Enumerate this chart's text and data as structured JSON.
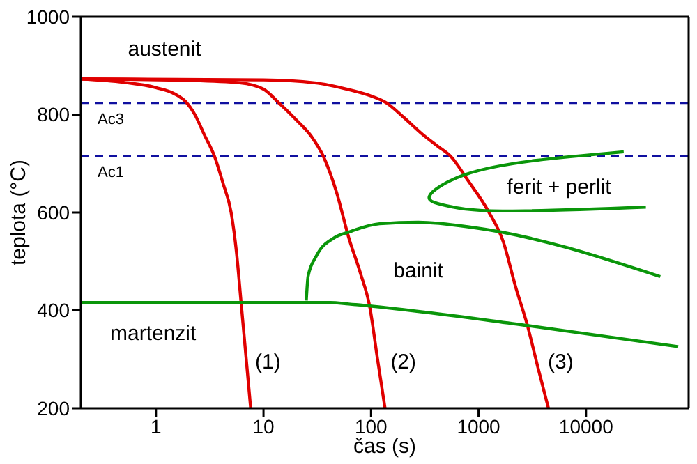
{
  "chart_data": {
    "type": "line",
    "xlabel": "čas (s)",
    "ylabel": "teplota (°C)",
    "log": "x",
    "xlim": [
      0.2,
      90000
    ],
    "xticks": [
      1,
      10,
      100,
      1000,
      10000
    ],
    "ylim": [
      200,
      1000
    ],
    "yticks": [
      200,
      400,
      600,
      800,
      1000
    ],
    "grid": false,
    "marker": "none",
    "line_style": "solid",
    "series": [
      {
        "color": "#e00000",
        "x": [
          0.2,
          0.5,
          1,
          1.5,
          1.9,
          2.3,
          2.8,
          3.5,
          4.2,
          5,
          5.6,
          6.2,
          7.6
        ],
        "values": [
          873,
          866,
          855,
          842,
          826,
          800,
          760,
          715,
          660,
          600,
          520,
          414,
          200
        ]
      },
      {
        "color": "#e00000",
        "x": [
          0.2,
          2,
          6,
          10,
          13.9,
          20,
          28,
          36,
          48,
          62,
          80,
          97,
          115,
          135
        ],
        "values": [
          873,
          870,
          865,
          852,
          824,
          790,
          755,
          715,
          640,
          549,
          475,
          409,
          300,
          200
        ]
      },
      {
        "color": "#e00000",
        "x": [
          0.2,
          10,
          30,
          62,
          100,
          139,
          200,
          300,
          420,
          550,
          800,
          1230,
          1700,
          2200,
          2850,
          3600,
          4470
        ],
        "values": [
          873,
          871,
          865,
          851,
          838,
          824,
          795,
          760,
          735,
          715,
          665,
          603,
          540,
          450,
          369,
          280,
          200
        ]
      },
      {
        "color": "#0a960a",
        "x": [
          0.2,
          42,
          62,
          2850,
          72000
        ],
        "values": [
          416,
          416,
          413,
          369,
          326
        ]
      },
      {
        "color": "#0a960a",
        "x": [
          25,
          26,
          31,
          46,
          62,
          120,
          275,
          910,
          49000
        ],
        "values": [
          420,
          470,
          511,
          549,
          560,
          577,
          580,
          569,
          469
        ]
      },
      {
        "color": "#0a960a",
        "x": [
          22400,
          3300,
          740,
          350,
          500,
          1660,
          36000
        ],
        "values": [
          724,
          706,
          677,
          634,
          614,
          603,
          611
        ]
      }
    ],
    "ref_lines": [
      {
        "axis": "y",
        "value": 824,
        "label": "Ac3",
        "color": "#1010a0",
        "line_style": "dashed"
      },
      {
        "axis": "y",
        "value": 715,
        "label": "Ac1",
        "color": "#1010a0",
        "line_style": "dashed"
      }
    ],
    "annotations": [
      "austenit",
      "ferit + perlit",
      "bainit",
      "martenzit",
      "(1)",
      "(2)",
      "(3)"
    ]
  }
}
